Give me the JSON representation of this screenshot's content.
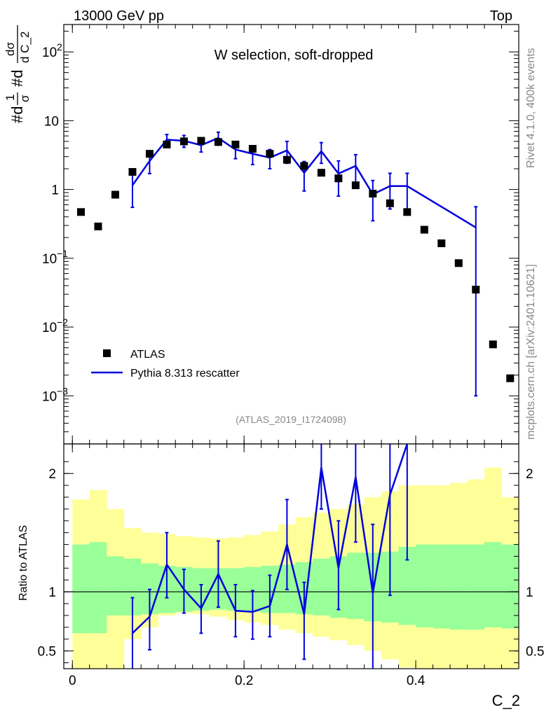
{
  "header": {
    "energy": "13000 GeV pp",
    "tag": "Top"
  },
  "side": {
    "rivet": "Rivet 4.1.0,  400k events",
    "mcplots": "mcplots.cern.ch [arXiv:2401.10621]"
  },
  "chart_data": {
    "type": "scatter",
    "title": "W selection, soft-dropped",
    "watermark": "(ATLAS_2019_I1724098)",
    "xlabel": "C_2",
    "ylabel": "#dσ/d C_2 · 1/σ",
    "ylabel_parts": {
      "a": "#d",
      "b": "1",
      "c": "σ",
      "d": "#d",
      "e": "dσ",
      "f": "d C_2"
    },
    "ratio_ylabel": "Ratio to ATLAS",
    "xlim": [
      -0.01,
      0.52
    ],
    "ylim_log": [
      0.0002,
      250
    ],
    "ratio_ylim": [
      0.35,
      2.25
    ],
    "x_ticks": [
      {
        "v": 0,
        "label": "0"
      },
      {
        "v": 0.2,
        "label": "0.2"
      },
      {
        "v": 0.4,
        "label": "0.4"
      }
    ],
    "y_ticks": [
      {
        "v": 100,
        "base": "10",
        "exp": "2"
      },
      {
        "v": 10,
        "base": "10",
        "exp": ""
      },
      {
        "v": 1,
        "base": "1",
        "exp": ""
      },
      {
        "v": 0.1,
        "base": "10",
        "exp": "−1"
      },
      {
        "v": 0.01,
        "base": "10",
        "exp": "−2"
      },
      {
        "v": 0.001,
        "base": "10",
        "exp": "−3"
      }
    ],
    "ratio_ticks": [
      {
        "v": 0.5,
        "label": "0.5"
      },
      {
        "v": 1,
        "label": "1"
      },
      {
        "v": 2,
        "label": "2"
      }
    ],
    "legend": [
      {
        "name": "ATLAS",
        "marker": "square"
      },
      {
        "name": "Pythia 8.313 rescatter",
        "marker": "line"
      }
    ],
    "colors": {
      "data": "#000000",
      "mc": "#0000dd",
      "band_inner": "#99ff99",
      "band_outer": "#ffff99"
    },
    "data": {
      "name": "ATLAS",
      "x": [
        0.01,
        0.03,
        0.05,
        0.07,
        0.09,
        0.11,
        0.13,
        0.15,
        0.17,
        0.19,
        0.21,
        0.23,
        0.25,
        0.27,
        0.29,
        0.31,
        0.33,
        0.35,
        0.37,
        0.39,
        0.41,
        0.43,
        0.45,
        0.47,
        0.49,
        0.51
      ],
      "y": [
        0.47,
        0.29,
        0.84,
        1.8,
        3.3,
        4.5,
        5.0,
        5.1,
        4.9,
        4.5,
        3.9,
        3.3,
        2.7,
        2.2,
        1.75,
        1.45,
        1.15,
        0.87,
        0.63,
        0.47,
        0.26,
        0.165,
        0.085,
        0.035,
        0.0056,
        0.0018
      ]
    },
    "mc": {
      "name": "Pythia 8.313 rescatter",
      "x": [
        0.07,
        0.09,
        0.11,
        0.13,
        0.15,
        0.17,
        0.19,
        0.21,
        0.23,
        0.25,
        0.27,
        0.29,
        0.31,
        0.33,
        0.35,
        0.37,
        0.39,
        0.47
      ],
      "y": [
        1.15,
        2.6,
        5.3,
        5.1,
        4.4,
        5.6,
        3.8,
        3.3,
        2.9,
        3.7,
        1.75,
        3.6,
        1.7,
        2.2,
        0.85,
        1.12,
        1.12,
        0.28
      ],
      "yerr_lo": [
        0.6,
        0.9,
        1.0,
        1.0,
        0.9,
        1.2,
        1.0,
        1.0,
        0.9,
        1.3,
        0.8,
        1.2,
        0.9,
        1.0,
        0.5,
        0.6,
        0.6,
        0.279
      ],
      "yerr_hi": [
        0.6,
        0.9,
        1.0,
        1.0,
        0.9,
        1.2,
        1.0,
        1.0,
        0.9,
        1.3,
        0.8,
        1.2,
        0.9,
        1.0,
        0.5,
        0.6,
        0.6,
        0.28
      ]
    },
    "ratio": {
      "x": [
        0.07,
        0.09,
        0.11,
        0.13,
        0.15,
        0.17,
        0.19,
        0.21,
        0.23,
        0.25,
        0.27,
        0.29,
        0.31,
        0.33,
        0.35,
        0.37,
        0.39
      ],
      "y": [
        0.65,
        0.79,
        1.23,
        1.02,
        0.86,
        1.15,
        0.84,
        0.83,
        0.88,
        1.4,
        0.81,
        2.05,
        1.2,
        1.97,
        0.99,
        1.82,
        2.25
      ],
      "err_lo": [
        0.3,
        0.28,
        0.28,
        0.2,
        0.21,
        0.28,
        0.22,
        0.23,
        0.26,
        0.38,
        0.38,
        0.35,
        0.35,
        0.55,
        0.64,
        0.85,
        0.98
      ],
      "err_hi": [
        0.3,
        0.23,
        0.27,
        0.17,
        0.2,
        0.28,
        0.22,
        0.18,
        0.26,
        0.38,
        0.27,
        0.33,
        0.4,
        0.4,
        0.58,
        0.5,
        0.2
      ]
    },
    "band_inner": {
      "lo": [
        0.65,
        0.65,
        0.8,
        0.8,
        0.81,
        0.82,
        0.83,
        0.84,
        0.85,
        0.84,
        0.83,
        0.82,
        0.82,
        0.81,
        0.8,
        0.78,
        0.77,
        0.75,
        0.74,
        0.72,
        0.7,
        0.69,
        0.68,
        0.68,
        0.7,
        0.69
      ],
      "hi": [
        1.4,
        1.42,
        1.3,
        1.28,
        1.24,
        1.22,
        1.21,
        1.2,
        1.2,
        1.2,
        1.21,
        1.22,
        1.23,
        1.25,
        1.28,
        1.3,
        1.33,
        1.33,
        1.34,
        1.38,
        1.4,
        1.4,
        1.4,
        1.4,
        1.42,
        1.4
      ]
    },
    "band_outer": {
      "lo": [
        0.2,
        0.2,
        0.3,
        0.6,
        0.7,
        0.8,
        0.82,
        0.81,
        0.79,
        0.76,
        0.74,
        0.72,
        0.68,
        0.65,
        0.62,
        0.59,
        0.55,
        0.5,
        0.43,
        0.36,
        0.35,
        0.35,
        0.35,
        0.35,
        0.35,
        0.35
      ],
      "hi": [
        1.78,
        1.86,
        1.7,
        1.54,
        1.5,
        1.49,
        1.47,
        1.46,
        1.45,
        1.46,
        1.48,
        1.51,
        1.57,
        1.63,
        1.67,
        1.7,
        1.74,
        1.8,
        1.85,
        1.9,
        1.9,
        1.9,
        1.92,
        1.95,
        2.05,
        1.8
      ]
    }
  }
}
